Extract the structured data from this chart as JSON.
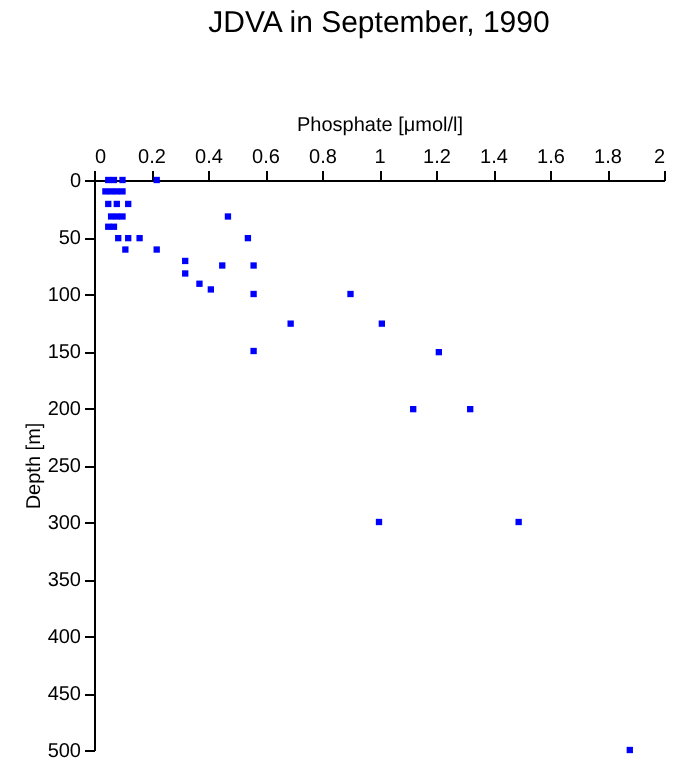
{
  "chart_data": {
    "type": "scatter",
    "title": "JDVA in September, 1990",
    "xlabel": "Phosphate [μmol/l]",
    "ylabel": "Depth [m]",
    "x": [
      0.05,
      0.07,
      0.1,
      0.22,
      0.04,
      0.06,
      0.08,
      0.1,
      0.05,
      0.08,
      0.12,
      0.06,
      0.08,
      0.1,
      0.47,
      0.05,
      0.07,
      0.085,
      0.12,
      0.16,
      0.54,
      0.11,
      0.22,
      0.32,
      0.45,
      0.56,
      0.32,
      0.37,
      0.41,
      0.56,
      0.9,
      0.69,
      1.01,
      0.56,
      1.21,
      1.12,
      1.32,
      1.0,
      1.49,
      1.88
    ],
    "series": [
      {
        "color": "#0000ff",
        "values": [
          0,
          0,
          0,
          0,
          10,
          10,
          10,
          10,
          21,
          21,
          21,
          32,
          32,
          32,
          32,
          41,
          41,
          51,
          51,
          51,
          51,
          61,
          61,
          71,
          75,
          75,
          82,
          91,
          96,
          100,
          100,
          126,
          126,
          150,
          151,
          201,
          201,
          300,
          300,
          500
        ]
      }
    ],
    "xlim": [
      0,
      2
    ],
    "xticks": [
      0,
      0.2,
      0.4,
      0.6,
      0.8,
      1,
      1.2,
      1.4,
      1.6,
      1.8,
      2
    ],
    "ylim": [
      500,
      0
    ],
    "yticks": [
      0,
      50,
      100,
      150,
      200,
      250,
      300,
      350,
      400,
      450,
      500
    ],
    "marker": "square",
    "grid": false
  }
}
